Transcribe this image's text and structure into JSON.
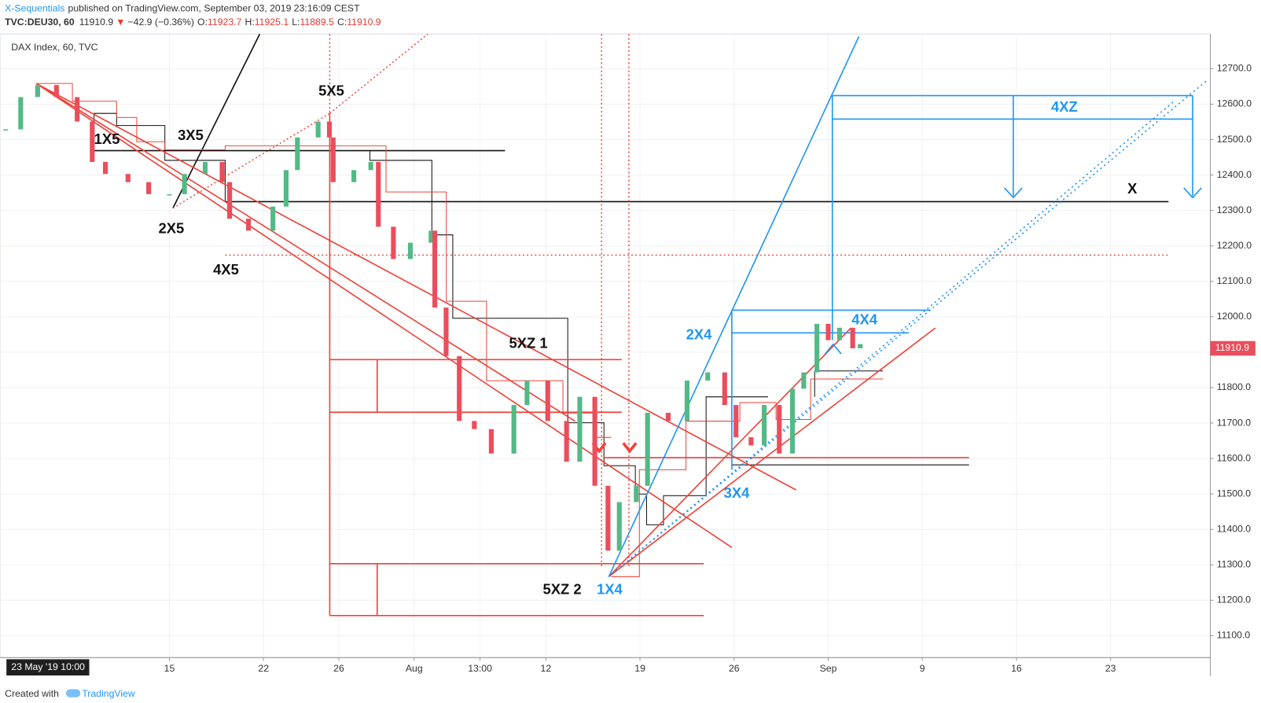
{
  "header": {
    "author": "X-Sequentials",
    "published": "published on TradingView.com, September 03, 2019 23:16:09 CEST",
    "symbol": "TVC:DEU30, 60",
    "last": "11910.9",
    "arrow": "▼",
    "change": "−42.9 (−0.36%)",
    "open_label": "O:",
    "open": "11923.7",
    "high_label": "H:",
    "high": "11925.1",
    "low_label": "L:",
    "low": "11889.5",
    "close_label": "C:",
    "close": "11910.9"
  },
  "chart_data": {
    "type": "candlestick",
    "title": "DAX Index, 60, TVC",
    "x": [
      -0.7,
      0.1,
      1.0,
      2.0,
      3.1,
      3.9,
      4.6,
      5.8,
      6.9,
      8.0,
      8.8,
      9.9,
      10.8,
      11.2,
      12.2,
      13.5,
      14.2,
      14.8,
      15.9,
      16.5,
      16.7,
      17.8,
      18.7,
      19.1,
      19.9,
      20.8,
      21.9,
      22.1,
      22.7,
      23.4,
      24.2,
      25.1,
      26.3,
      27.0,
      28.1,
      29.1,
      29.8,
      30.6,
      31.3,
      31.9,
      32.8,
      33.4,
      34.5,
      35.5,
      36.6,
      37.5,
      38.1,
      38.9,
      39.6,
      40.4,
      41.1,
      41.7,
      42.4,
      43.0,
      43.6,
      44.3,
      44.7
    ],
    "close": [
      12529,
      12620,
      12654,
      12620,
      12551,
      12437,
      12403,
      12380,
      12346,
      12346,
      12403,
      12437,
      12380,
      12277,
      12243,
      12311,
      12414,
      12506,
      12551,
      12506,
      12380,
      12414,
      12437,
      12254,
      12163,
      12209,
      12243,
      12026,
      11889,
      11706,
      11683,
      11614,
      11751,
      11820,
      11706,
      11591,
      11774,
      11523,
      11340,
      11477,
      11523,
      11729,
      11706,
      11820,
      11843,
      11751,
      11660,
      11637,
      11751,
      11614,
      11797,
      11843,
      11980,
      11934,
      11969,
      11911,
      11923
    ],
    "up_color": "#53b987",
    "down_color": "#eb4d5c",
    "xlim": [
      -1,
      63.3
    ],
    "xticks": [
      {
        "value": 8,
        "label": "15"
      },
      {
        "value": 13,
        "label": "22"
      },
      {
        "value": 17,
        "label": "26"
      },
      {
        "value": 21,
        "label": "Aug"
      },
      {
        "value": 24.5,
        "label": "13:00"
      },
      {
        "value": 28,
        "label": "12"
      },
      {
        "value": 33,
        "label": "19"
      },
      {
        "value": 38,
        "label": "26"
      },
      {
        "value": 43,
        "label": "Sep"
      },
      {
        "value": 48,
        "label": "9"
      },
      {
        "value": 53,
        "label": "16"
      },
      {
        "value": 58,
        "label": "23"
      }
    ],
    "ylim": [
      11038,
      12798
    ],
    "yticks": [
      {
        "value": 11100,
        "label": "11100.0"
      },
      {
        "value": 11200,
        "label": "11200.0"
      },
      {
        "value": 11300,
        "label": "11300.0"
      },
      {
        "value": 11400,
        "label": "11400.0"
      },
      {
        "value": 11500,
        "label": "11500.0"
      },
      {
        "value": 11600,
        "label": "11600.0"
      },
      {
        "value": 11700,
        "label": "11700.0"
      },
      {
        "value": 11800,
        "label": "11800.0"
      },
      {
        "value": 11900,
        "label": "11900.0"
      },
      {
        "value": 12000,
        "label": "12000.0"
      },
      {
        "value": 12100,
        "label": "12100.0"
      },
      {
        "value": 12200,
        "label": "12200.0"
      },
      {
        "value": 12300,
        "label": "12300.0"
      },
      {
        "value": 12400,
        "label": "12400.0"
      },
      {
        "value": 12500,
        "label": "12500.0"
      },
      {
        "value": 12600,
        "label": "12600.0"
      },
      {
        "value": 12700,
        "label": "12700.0"
      }
    ],
    "grid": true,
    "last_price": 11910.9,
    "crosshair_label": "23 May '19  10:00",
    "annotations": [
      "1X5",
      "2X5",
      "3X5",
      "4X5",
      "5X5",
      "5XZ 1",
      "5XZ 2",
      "1X4",
      "2X4",
      "3X4",
      "4X4",
      "4XZ",
      "X"
    ]
  },
  "footer": {
    "created": "Created with",
    "brand": "TradingView"
  }
}
